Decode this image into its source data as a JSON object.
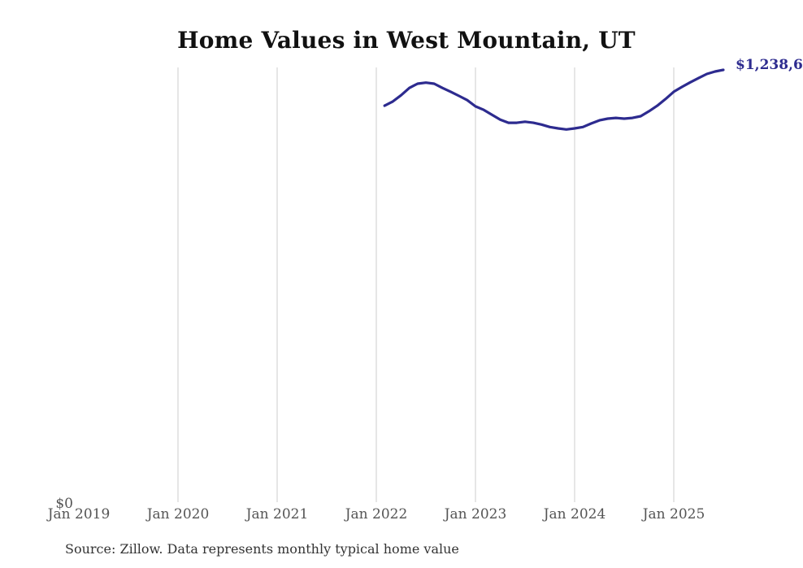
{
  "page": {
    "title": "Home Values in West Mountain, UT",
    "source_note": "Source: Zillow. Data represents monthly typical home value",
    "latest_value_label": "$1,238,6",
    "y_zero_label": "$0",
    "colors": {
      "line": "#2d2b8f",
      "annotation_text": "#2d2b8f",
      "gridline": "#cccccc",
      "axis_text": "#555555",
      "title_text": "#111111",
      "source_text": "#333333",
      "background": "#ffffff"
    }
  },
  "chart_data": {
    "type": "line",
    "title": "Home Values in West Mountain, UT",
    "xlabel": "",
    "ylabel": "",
    "x_tick_labels": [
      "Jan 2019",
      "Jan 2020",
      "Jan 2021",
      "Jan 2022",
      "Jan 2023",
      "Jan 2024",
      "Jan 2025"
    ],
    "gridlines_skip_first_tick": true,
    "y_tick_labels": [
      "$0"
    ],
    "ylim": [
      0,
      1300000
    ],
    "legend": "none",
    "annotation": "$1,238,6",
    "series": [
      {
        "name": "Typical home value",
        "x": [
          "Feb 2022",
          "Mar 2022",
          "Apr 2022",
          "May 2022",
          "Jun 2022",
          "Jul 2022",
          "Aug 2022",
          "Sep 2022",
          "Oct 2022",
          "Nov 2022",
          "Dec 2022",
          "Jan 2023",
          "Feb 2023",
          "Mar 2023",
          "Apr 2023",
          "May 2023",
          "Jun 2023",
          "Jul 2023",
          "Aug 2023",
          "Sep 2023",
          "Oct 2023",
          "Nov 2023",
          "Dec 2023",
          "Jan 2024",
          "Feb 2024",
          "Mar 2024",
          "Apr 2024",
          "May 2024",
          "Jun 2024",
          "Jul 2024",
          "Aug 2024",
          "Sep 2024",
          "Oct 2024",
          "Nov 2024",
          "Dec 2024",
          "Jan 2025",
          "Feb 2025",
          "Mar 2025",
          "Apr 2025",
          "May 2025",
          "Jun 2025",
          "Jul 2025"
        ],
        "values": [
          1136000,
          1148000,
          1166000,
          1187000,
          1199000,
          1202000,
          1199000,
          1187000,
          1176000,
          1164000,
          1152000,
          1134000,
          1124000,
          1110000,
          1096000,
          1087000,
          1087000,
          1090000,
          1087000,
          1082000,
          1075000,
          1071000,
          1068000,
          1071000,
          1075000,
          1085000,
          1094000,
          1099000,
          1101000,
          1099000,
          1101000,
          1106000,
          1120000,
          1136000,
          1155000,
          1176000,
          1190000,
          1203000,
          1215000,
          1227000,
          1234000,
          1238600
        ]
      }
    ]
  }
}
